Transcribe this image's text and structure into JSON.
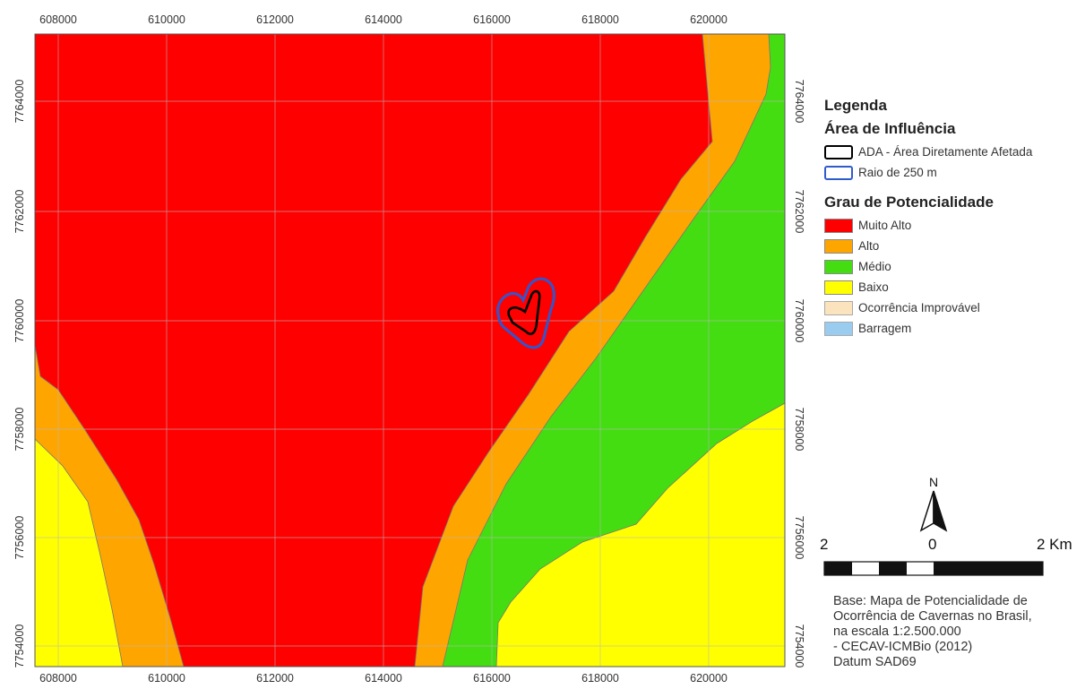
{
  "map": {
    "x_ticks": [
      "608000",
      "610000",
      "612000",
      "614000",
      "616000",
      "618000",
      "620000"
    ],
    "y_ticks": [
      "7764000",
      "7762000",
      "7760000",
      "7758000",
      "7756000",
      "7754000"
    ],
    "colors": {
      "muito_alto": "#ff0000",
      "alto": "#ffa500",
      "medio": "#44dd11",
      "baixo": "#ffff00",
      "ada_outline": "#000000",
      "buffer_outline": "#3355cc"
    }
  },
  "legend": {
    "title": "Legenda",
    "area_title": "Área de Influência",
    "area_items": [
      {
        "label": "ADA - Área Diretamente Afetada",
        "stroke": "#000000"
      },
      {
        "label": "Raio de 250 m",
        "stroke": "#2f5ccc"
      }
    ],
    "grau_title": "Grau de Potencialidade",
    "grau_items": [
      {
        "label": "Muito Alto",
        "color": "#ff0000"
      },
      {
        "label": "Alto",
        "color": "#ffa500"
      },
      {
        "label": "Médio",
        "color": "#44dd11"
      },
      {
        "label": "Baixo",
        "color": "#ffff00"
      },
      {
        "label": "Ocorrência Improvável",
        "color": "#fbe3bd"
      },
      {
        "label": "Barragem",
        "color": "#99ccee"
      }
    ]
  },
  "north_arrow": {
    "label": "N"
  },
  "scale_bar": {
    "left_label": "2",
    "mid_label": "0",
    "right_label": "2 Km"
  },
  "source": {
    "lines": [
      "Base: Mapa de Potencialidade de",
      "Ocorrência de Cavernas no Brasil,",
      "na escala 1:2.500.000",
      "- CECAV-ICMBio (2012)",
      "Datum SAD69"
    ]
  }
}
